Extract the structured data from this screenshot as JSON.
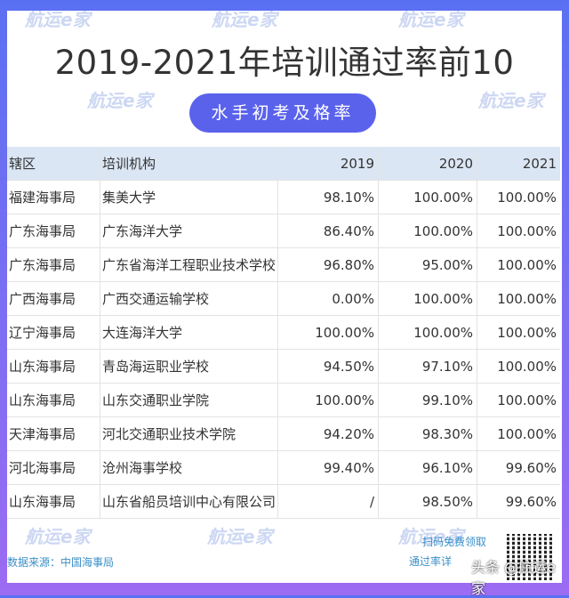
{
  "title": "2019-2021年培训通过率前10",
  "subtitle": "水手初考及格率",
  "watermark": "航运e家",
  "table": {
    "headers": [
      "辖区",
      "培训机构",
      "2019",
      "2020",
      "2021"
    ],
    "rows": [
      [
        "福建海事局",
        "集美大学",
        "98.10%",
        "100.00%",
        "100.00%"
      ],
      [
        "广东海事局",
        "广东海洋大学",
        "86.40%",
        "100.00%",
        "100.00%"
      ],
      [
        "广东海事局",
        "广东省海洋工程职业技术学校",
        "96.80%",
        "95.00%",
        "100.00%"
      ],
      [
        "广西海事局",
        "广西交通运输学校",
        "0.00%",
        "100.00%",
        "100.00%"
      ],
      [
        "辽宁海事局",
        "大连海洋大学",
        "100.00%",
        "100.00%",
        "100.00%"
      ],
      [
        "山东海事局",
        "青岛海运职业学校",
        "94.50%",
        "97.10%",
        "100.00%"
      ],
      [
        "山东海事局",
        "山东交通职业学院",
        "100.00%",
        "99.10%",
        "100.00%"
      ],
      [
        "天津海事局",
        "河北交通职业技术学院",
        "94.20%",
        "98.30%",
        "100.00%"
      ],
      [
        "河北海事局",
        "沧州海事学校",
        "99.40%",
        "96.10%",
        "99.60%"
      ],
      [
        "山东海事局",
        "山东省船员培训中心有限公司",
        "/",
        "98.50%",
        "99.60%"
      ]
    ]
  },
  "footer": {
    "source": "数据来源：中国海事局",
    "scan_line1": "扫码免费领取",
    "scan_line2": "通过率详",
    "credit": "头条 @航运e家"
  },
  "colors": {
    "border_top": "#5a70f2",
    "border_bottom": "#9c6cf2",
    "pill": "#5a62ec",
    "header_bg": "#dbe6f4",
    "footer_text": "#3a8fc8"
  }
}
